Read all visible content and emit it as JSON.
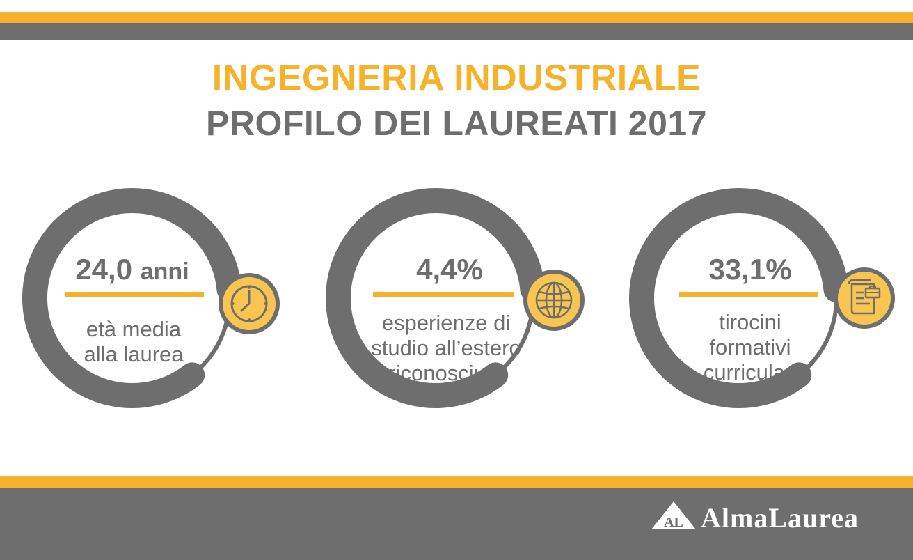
{
  "header": {
    "title_line1": "INGEGNERIA INDUSTRIALE",
    "title_line2": "PROFILO DEI LAUREATI 2017"
  },
  "stats": [
    {
      "value": "24,0",
      "unit": "anni",
      "desc_lines": [
        "età media",
        "alla laurea"
      ],
      "icon": "clock-icon"
    },
    {
      "value": "4,4%",
      "unit": "",
      "desc_lines": [
        "esperienze di",
        "studio all’estero",
        "riconosciute"
      ],
      "icon": "globe-icon"
    },
    {
      "value": "33,1%",
      "unit": "",
      "desc_lines": [
        "tirocini",
        "formativi",
        "curriculari"
      ],
      "icon": "document-briefcase-icon"
    }
  ],
  "footer": {
    "logo_mark": "AL",
    "logo_text": "AlmaLaurea"
  },
  "colors": {
    "accent": "#F5B22A",
    "gray": "#6E6E6E",
    "icon_fill": "#F8C550"
  }
}
